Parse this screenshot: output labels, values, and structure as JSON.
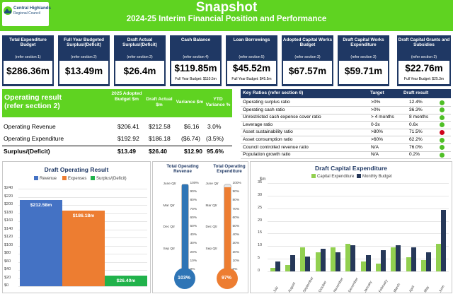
{
  "header": {
    "title": "Snapshot",
    "subtitle": "2024-25 Interim Financial Position and Performance",
    "logo_line1": "Central Highlands",
    "logo_line2": "Regional Council",
    "color": "#5fd321"
  },
  "cards": [
    {
      "label": "Total Expenditure Budget",
      "section": "(refer section 1)",
      "value": "$286.36m",
      "budget": ""
    },
    {
      "label": "Full Year Budgeted Surplus/(Deficit)",
      "section": "(refer section 2)",
      "value": "$13.49m",
      "budget": ""
    },
    {
      "label": "Draft Actual Surplus/(Deficit)",
      "section": "(refer section 2)",
      "value": "$26.4m",
      "budget": ""
    },
    {
      "label": "Cash Balance",
      "section": "(refer section 4)",
      "value": "$119.85m",
      "budget": "Full Year Budget: $110.5m"
    },
    {
      "label": "Loan Borrowings",
      "section": "(refer section 5)",
      "value": "$45.52m",
      "budget": "Full Year Budget: $45.5m"
    },
    {
      "label": "Adopted Capital Works Budget",
      "section": "(refer section 3)",
      "value": "$67.57m",
      "budget": ""
    },
    {
      "label": "Draft Capital Works Expenditure",
      "section": "(refer section 3)",
      "value": "$59.71m",
      "budget": ""
    },
    {
      "label": "Draft Capital Grants and Subsidies",
      "section": "(refer section 3)",
      "value": "$22.76m",
      "budget": "Full Year Budget: $25.3m"
    }
  ],
  "operating": {
    "title_line1": "Operating result",
    "title_line2": "(refer section 2)",
    "headers": [
      "2025 Adopted Budget $m",
      "Draft Actual $m",
      "Variance $m",
      "YTD Variance %"
    ],
    "rows": [
      {
        "label": "Operating Revenue",
        "budget": "$206.41",
        "actual": "$212.58",
        "variance": "$6.16",
        "pct": "3.0%"
      },
      {
        "label": "Operating Expenditure",
        "budget": "$192.92",
        "actual": "$186.18",
        "variance": "($6.74)",
        "pct": "(3.5%)"
      },
      {
        "label": "Surplus/(Deficit)",
        "budget": "$13.49",
        "actual": "$26.40",
        "variance": "$12.90",
        "pct": "95.6%"
      }
    ]
  },
  "key_ratios": {
    "title": "Key Ratios (refer section 6)",
    "col_target": "Target",
    "col_result": "Draft result",
    "rows": [
      {
        "name": "Operating surplus ratio",
        "target": ">0%",
        "result": "12.4%",
        "status": "green"
      },
      {
        "name": "Operating cash ratio",
        "target": ">0%",
        "result": "36.3%",
        "status": "green"
      },
      {
        "name": "Unrestricted cash expense cover ratio",
        "target": "> 4 months",
        "result": "8 months",
        "status": "green"
      },
      {
        "name": "Leverage ratio",
        "target": "0-3x",
        "result": "0.6x",
        "status": "green"
      },
      {
        "name": "Asset sustainability ratio",
        "target": ">80%",
        "result": "71.5%",
        "status": "red"
      },
      {
        "name": "Asset consumption ratio",
        "target": ">60%",
        "result": "62.2%",
        "status": "green"
      },
      {
        "name": "Council controlled revenue ratio",
        "target": "N/A",
        "result": "76.0%",
        "status": "green"
      },
      {
        "name": "Population growth ratio",
        "target": "N/A",
        "result": "0.2%",
        "status": "green"
      }
    ],
    "colors": {
      "green": "#4fbf26",
      "red": "#d0021b"
    }
  },
  "chart_data": [
    {
      "type": "bar",
      "title": "Draft Operating Result",
      "categories": [
        ""
      ],
      "series": [
        {
          "name": "Revenue",
          "values": [
            212.58
          ],
          "label": "$212.58m",
          "color": "#4472c4"
        },
        {
          "name": "Expenses",
          "values": [
            186.18
          ],
          "label": "$186.18m",
          "color": "#ed7d31"
        },
        {
          "name": "Surplus/(Deficit)",
          "values": [
            26.4
          ],
          "label": "$26.40m",
          "color": "#21b24b"
        }
      ],
      "yticks": [
        "$0",
        "$20",
        "$40",
        "$60",
        "$80",
        "$100",
        "$120",
        "$140",
        "$160",
        "$180",
        "$200",
        "$220",
        "$240"
      ],
      "ylim": [
        0,
        240
      ],
      "grid": true,
      "legend": "top"
    },
    {
      "type": "bar",
      "title": "Total Operating Revenue",
      "left_ticks": [
        "June Qtr",
        "Mar Qtr",
        "Dec Qtr",
        "Sep Qtr"
      ],
      "right_ticks": [
        "100%",
        "90%",
        "80%",
        "70%",
        "60%",
        "50%",
        "40%",
        "30%",
        "20%",
        "10%",
        "0%"
      ],
      "values": [
        103
      ],
      "label": "103%",
      "color": "#2e75b6"
    },
    {
      "type": "bar",
      "title": "Total Operating Expenditure",
      "left_ticks": [
        "June Qtr",
        "Mar Qtr",
        "Dec Qtr",
        "Sep Qtr"
      ],
      "right_ticks": [
        "100%",
        "90%",
        "80%",
        "70%",
        "60%",
        "50%",
        "40%",
        "30%",
        "20%",
        "10%",
        "0%"
      ],
      "values": [
        97
      ],
      "label": "97%",
      "color": "#ed7d31"
    },
    {
      "type": "bar",
      "title": "Draft Capital Expenditure",
      "ylabel": "$m",
      "ylim": [
        0,
        35
      ],
      "yticks": [
        "0",
        "5",
        "10",
        "15",
        "20",
        "25",
        "30",
        "35"
      ],
      "categories": [
        "July",
        "August",
        "September",
        "October",
        "November",
        "December",
        "January",
        "February",
        "March",
        "April",
        "May",
        "June"
      ],
      "series": [
        {
          "name": "Capital Expenditure",
          "values": [
            1.5,
            2.5,
            9.5,
            7.5,
            9.5,
            11.0,
            4.0,
            3.0,
            9.5,
            5.5,
            4.5,
            11.0
          ],
          "color": "#92d050"
        },
        {
          "name": "Monthly Budget",
          "values": [
            4.0,
            6.5,
            6.0,
            9.0,
            7.5,
            10.5,
            6.5,
            8.5,
            10.5,
            9.5,
            7.5,
            24.5
          ],
          "color": "#263859"
        }
      ],
      "grid": true,
      "legend": "top"
    }
  ]
}
